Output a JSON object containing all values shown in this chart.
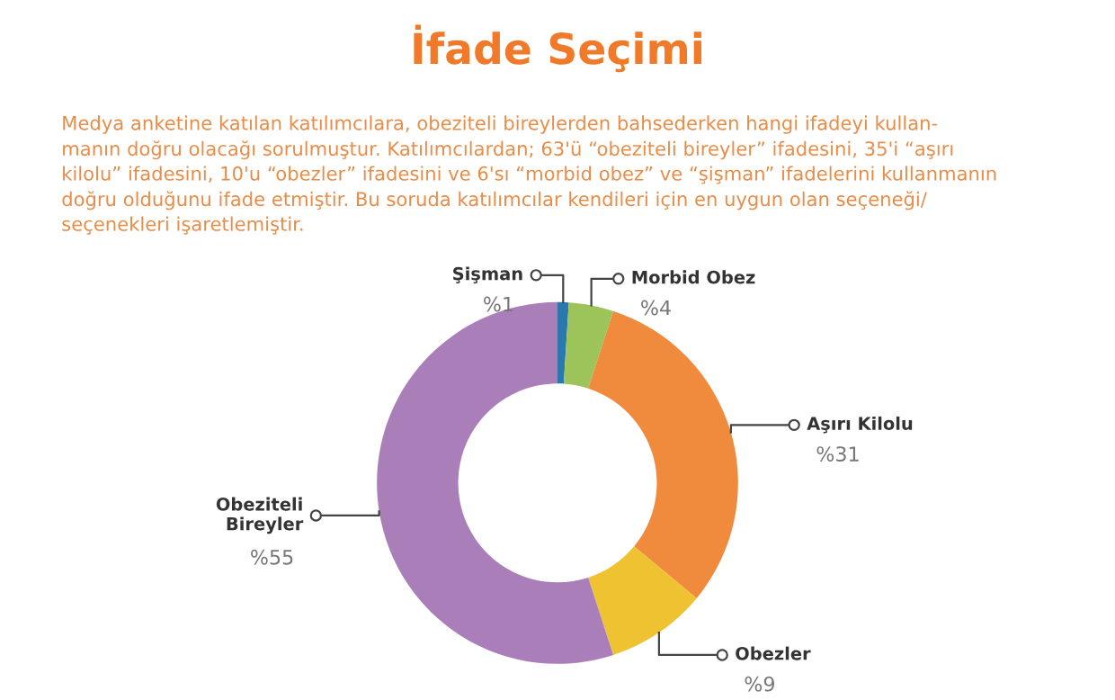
{
  "chart_data": {
    "type": "donut",
    "title": "İfade Seçimi",
    "subtitle": "Medya anketine katılan katılımcılara, obeziteli bireylerden bahsederken hangi ifadeyi kullan-\nmanın doğru olacağı sorulmuştur. Katılımcılardan; 63'ü “obeziteli bireyler” ifadesini, 35'i “aşırı\nkilolu” ifadesini, 10'u “obezler” ifadesini ve 6'sı “morbid obez” ve “şişman” ifadelerini kullanmanın\ndoğru olduğunu ifade etmiştir. Bu soruda katılımcılar kendileri için en uygun olan seçeneği/\nseçenekleri işaretlemiştir.",
    "categories": [
      "Şişman",
      "Morbid Obez",
      "Aşırı Kilolu",
      "Obezler",
      "Obeziteli\nBireyler"
    ],
    "values": [
      1,
      4,
      31,
      9,
      55
    ],
    "colors": [
      "#2b78ad",
      "#9cc45a",
      "#f08a3c",
      "#efc231",
      "#a97eb9"
    ],
    "value_labels": [
      "%1",
      "%4",
      "%31",
      "%9",
      "%55"
    ]
  }
}
